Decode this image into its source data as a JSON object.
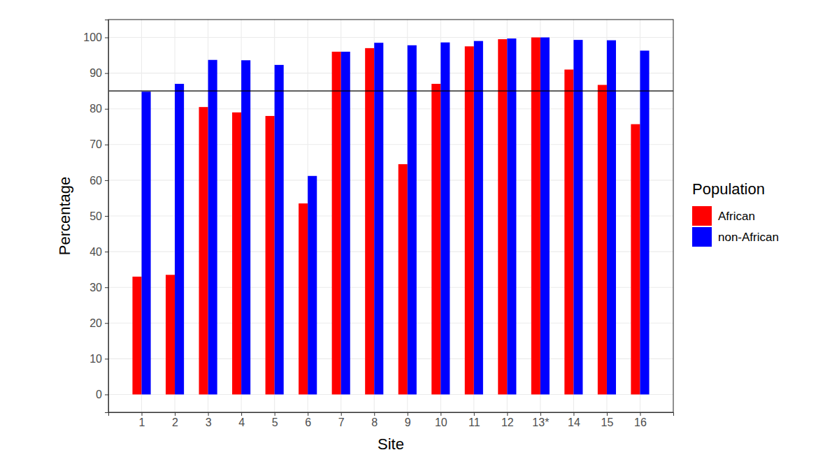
{
  "chart_data": {
    "type": "bar",
    "x_label": "Site",
    "y_label": "Percentage",
    "legend_title": "Population",
    "categories": [
      "1",
      "2",
      "3",
      "4",
      "5",
      "6",
      "7",
      "8",
      "9",
      "10",
      "11",
      "12",
      "13*",
      "14",
      "15",
      "16"
    ],
    "series": [
      {
        "name": "African",
        "color": "#ff0000",
        "values": [
          33,
          33.5,
          80.5,
          79,
          78,
          53.5,
          96,
          97,
          64.5,
          87,
          97.5,
          99.5,
          100,
          91,
          86.7,
          75.7
        ]
      },
      {
        "name": "non-African",
        "color": "#0000ff",
        "values": [
          84.8,
          87,
          93.7,
          93.6,
          92.3,
          61.2,
          96,
          98.5,
          97.8,
          98.6,
          99,
          99.7,
          100,
          99.3,
          99.2,
          96.3
        ]
      }
    ],
    "ylim": [
      -5,
      105
    ],
    "yticks": [
      0,
      10,
      20,
      30,
      40,
      50,
      60,
      70,
      80,
      90,
      100
    ],
    "grid": true,
    "legend": "right",
    "reference_line": 85
  }
}
